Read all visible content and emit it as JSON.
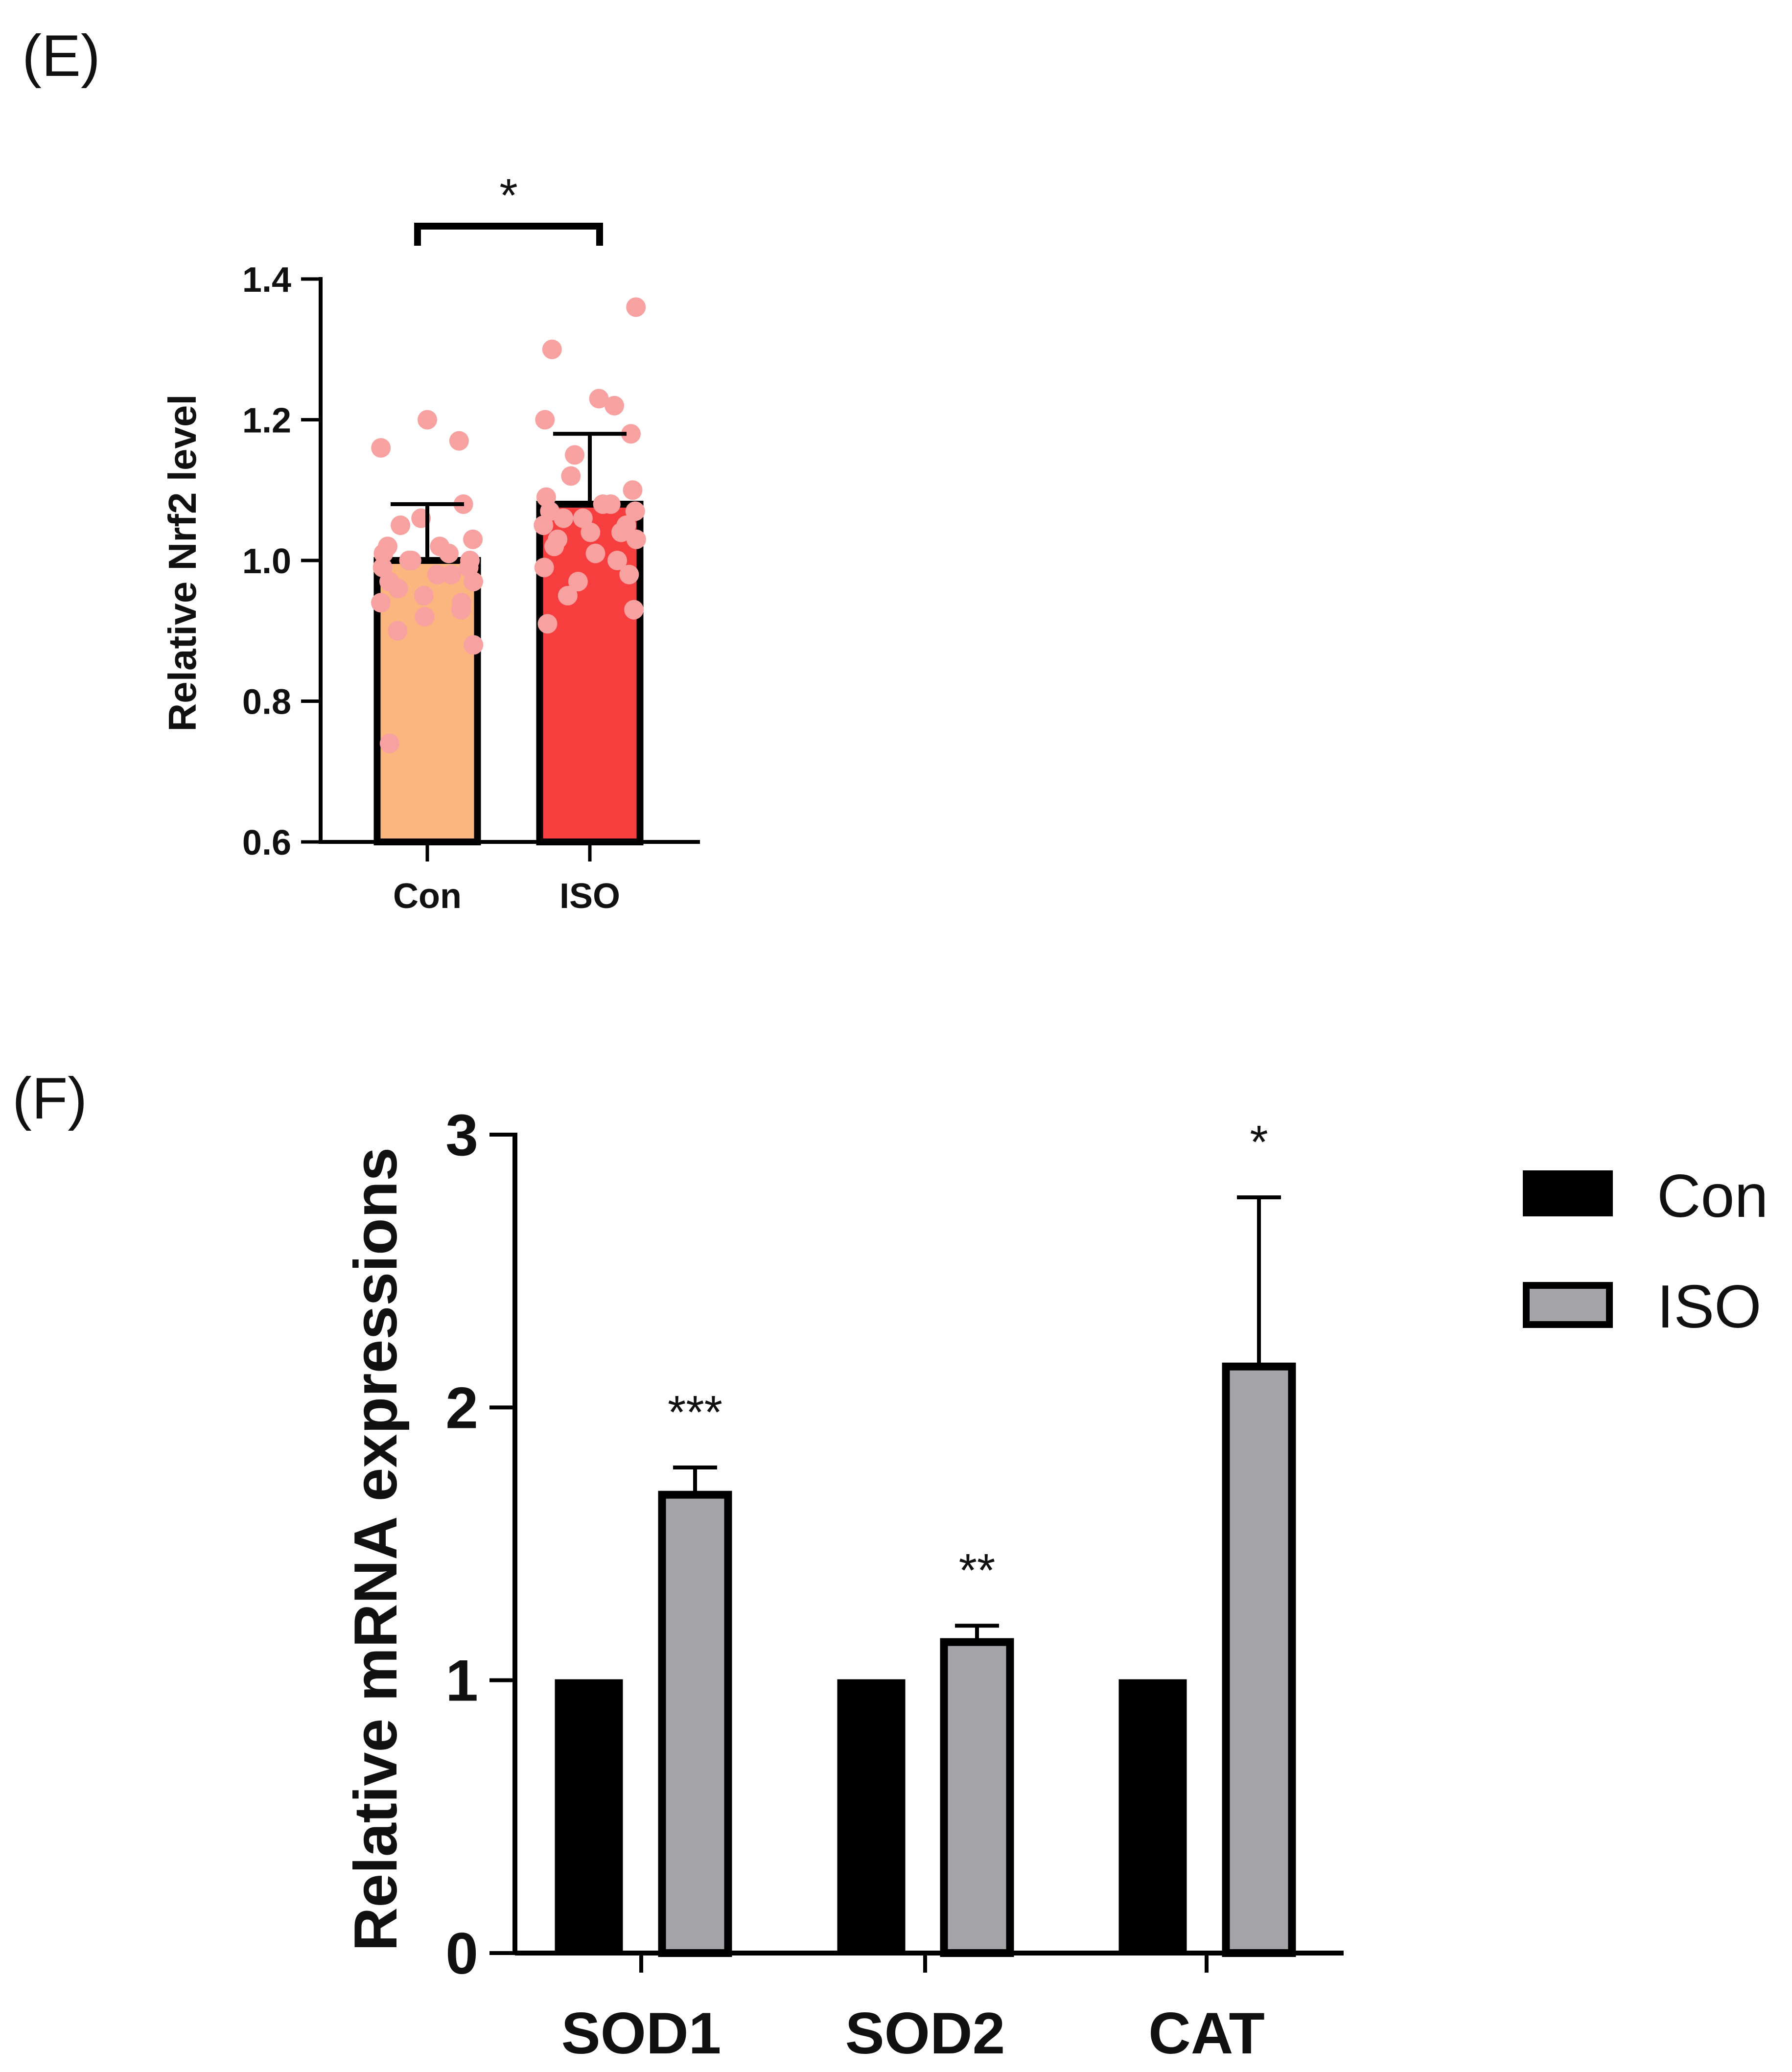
{
  "figure_labels": {
    "panel_e": "(E)",
    "panel_f": "(F)"
  },
  "colors": {
    "con_e": "#FBB57E",
    "iso_e": "#F63E3E",
    "points_e": "#F7A1A1",
    "con_f": "#000000",
    "iso_f": "#A4A4A8",
    "axis": "#000000"
  },
  "chart_data": [
    {
      "id": "panel-e",
      "type": "bar",
      "title": "",
      "xlabel": "",
      "ylabel": "Relative Nrf2  level",
      "ylim": [
        0.6,
        1.4
      ],
      "yticks": [
        0.6,
        0.8,
        1.0,
        1.2,
        1.4
      ],
      "ytick_labels": [
        "0.6",
        "0.8",
        "1.0",
        "1.2",
        "1.4"
      ],
      "categories": [
        "Con",
        "ISO"
      ],
      "values": [
        1.0,
        1.08
      ],
      "errors": [
        0.08,
        0.1
      ],
      "points": [
        [
          1.2,
          1.17,
          1.16,
          1.08,
          1.06,
          1.05,
          1.03,
          1.02,
          1.02,
          1.01,
          1.01,
          1.0,
          1.0,
          1.0,
          0.99,
          0.99,
          0.98,
          0.98,
          0.97,
          0.97,
          0.96,
          0.95,
          0.94,
          0.94,
          0.93,
          0.92,
          0.9,
          0.88,
          0.74
        ],
        [
          1.36,
          1.3,
          1.23,
          1.22,
          1.2,
          1.18,
          1.15,
          1.12,
          1.1,
          1.09,
          1.08,
          1.08,
          1.07,
          1.07,
          1.06,
          1.06,
          1.05,
          1.05,
          1.04,
          1.04,
          1.03,
          1.03,
          1.02,
          1.01,
          1.0,
          0.99,
          0.98,
          0.97,
          0.95,
          0.93,
          0.91
        ]
      ],
      "significance": {
        "label": "*",
        "between": [
          "Con",
          "ISO"
        ]
      }
    },
    {
      "id": "panel-f",
      "type": "bar",
      "title": "",
      "xlabel": "",
      "ylabel": "Relative mRNA expressions",
      "ylim": [
        0,
        3
      ],
      "yticks": [
        0,
        1,
        2,
        3
      ],
      "ytick_labels": [
        "0",
        "1",
        "2",
        "3"
      ],
      "categories": [
        "SOD1",
        "SOD2",
        "CAT"
      ],
      "series": [
        {
          "name": "Con",
          "values": [
            1.0,
            1.0,
            1.0
          ],
          "errors": [
            0,
            0,
            0
          ]
        },
        {
          "name": "ISO",
          "values": [
            1.68,
            1.14,
            2.15
          ],
          "errors": [
            0.1,
            0.06,
            0.62
          ]
        }
      ],
      "significance": [
        "***",
        "**",
        "*"
      ],
      "legend": {
        "position": "top-right",
        "entries": [
          "Con",
          "ISO"
        ]
      }
    }
  ]
}
